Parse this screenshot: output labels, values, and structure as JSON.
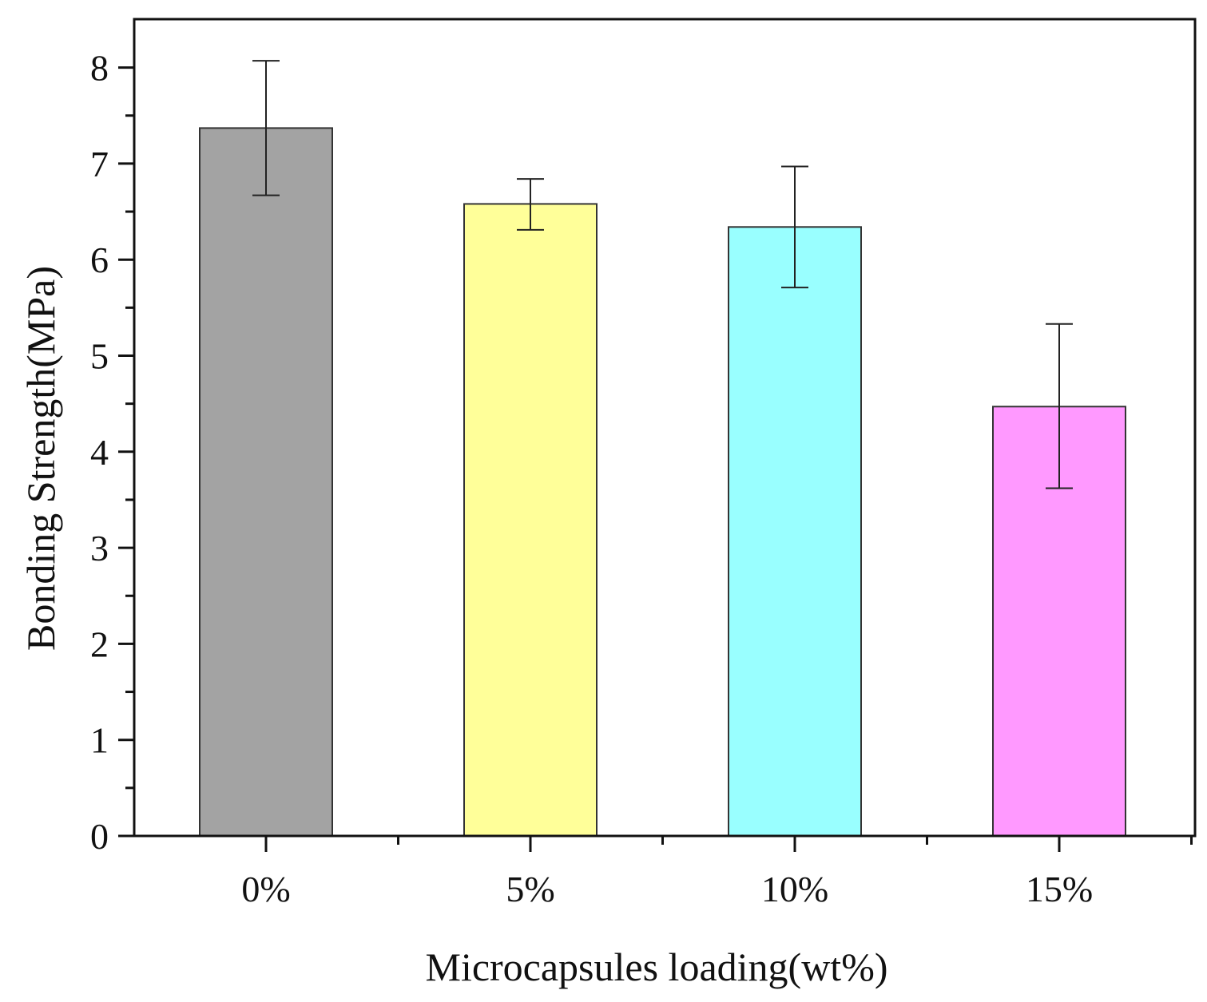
{
  "chart_data": {
    "type": "bar",
    "title": "",
    "xlabel": "Microcapsules loading(wt%)",
    "ylabel": "Bonding Strength(MPa)",
    "categories": [
      "0%",
      "5%",
      "10%",
      "15%"
    ],
    "values": [
      7.37,
      6.58,
      6.34,
      4.47
    ],
    "error_bars": [
      {
        "low": 6.67,
        "high": 8.07
      },
      {
        "low": 6.31,
        "high": 6.84
      },
      {
        "low": 5.71,
        "high": 6.97
      },
      {
        "low": 3.62,
        "high": 5.33
      }
    ],
    "bar_colors": [
      "#a3a3a3",
      "#ffff99",
      "#99ffff",
      "#ff99ff"
    ],
    "ylim": [
      0,
      8.5
    ],
    "yticks": [
      0,
      1,
      2,
      3,
      4,
      5,
      6,
      7,
      8
    ],
    "grid": false,
    "legend": "none"
  }
}
